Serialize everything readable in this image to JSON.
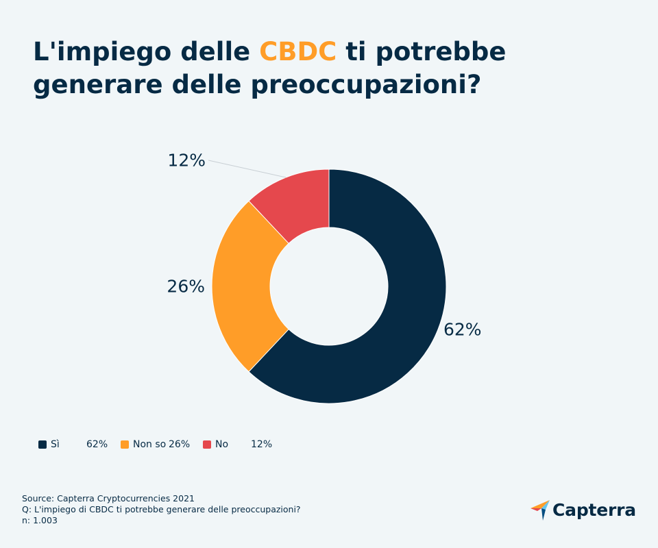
{
  "title": {
    "before": "L'impiego delle ",
    "highlight": "CBDC",
    "after": " ti potrebbe generare delle preoccupazioni?"
  },
  "colors": {
    "highlight": "#ff9d28",
    "text": "#062a44",
    "background": "#f1f6f8"
  },
  "chart_data": {
    "type": "pie",
    "donut": true,
    "categories": [
      "Sì",
      "Non so",
      "No"
    ],
    "values": [
      62,
      26,
      12
    ],
    "value_labels": [
      "62%",
      "26%",
      "12%"
    ],
    "colors": [
      "#062a44",
      "#ff9d28",
      "#e5484d"
    ],
    "start": "top, clockwise",
    "legend_position": "bottom-left"
  },
  "legend": [
    {
      "label": "Sì",
      "value": "62%",
      "color": "#062a44"
    },
    {
      "label": "Non so",
      "value": "26%",
      "color": "#ff9d28"
    },
    {
      "label": "No",
      "value": "12%",
      "color": "#e5484d"
    }
  ],
  "footer": {
    "source": "Source: Capterra Cryptocurrencies 2021",
    "question": "Q: L'impiego di CBDC ti potrebbe generare delle preoccupazioni?",
    "sample": "n: 1.003"
  },
  "logo": {
    "text": "Capterra",
    "icon": "capterra-arrow-icon"
  }
}
